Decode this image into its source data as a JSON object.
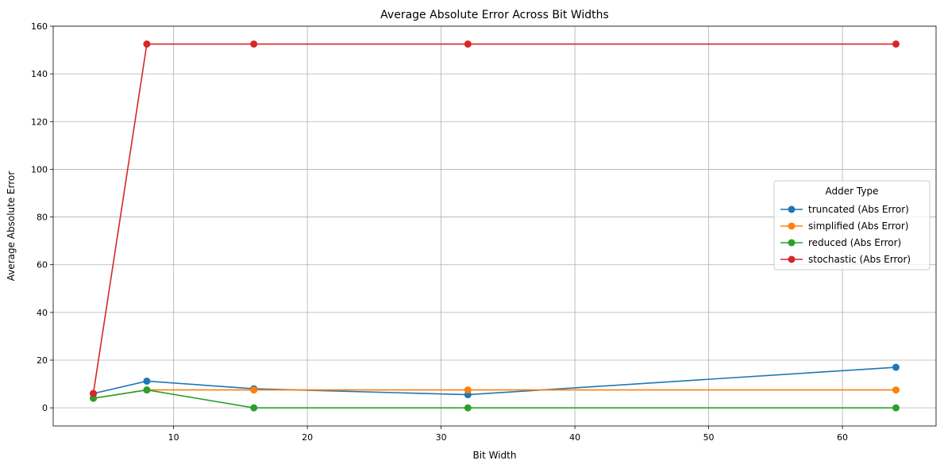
{
  "chart_data": {
    "type": "line",
    "title": "Average Absolute Error Across Bit Widths",
    "xlabel": "Bit Width",
    "ylabel": "Average Absolute Error",
    "x": [
      4,
      8,
      16,
      32,
      64
    ],
    "xlim": [
      1,
      67
    ],
    "ylim": [
      -7.6,
      160
    ],
    "xticks": [
      10,
      20,
      30,
      40,
      50,
      60
    ],
    "yticks": [
      0,
      20,
      40,
      60,
      80,
      100,
      120,
      140,
      160
    ],
    "grid": true,
    "legend": {
      "title": "Adder Type",
      "placement": "center-right"
    },
    "series": [
      {
        "name": "truncated (Abs Error)",
        "color": "#1f77b4",
        "values": [
          6.0,
          11.2,
          8.0,
          5.5,
          17.0
        ]
      },
      {
        "name": "simplified (Abs Error)",
        "color": "#ff7f0e",
        "values": [
          4.0,
          7.5,
          7.5,
          7.5,
          7.5
        ]
      },
      {
        "name": "reduced (Abs Error)",
        "color": "#2ca02c",
        "values": [
          4.0,
          7.5,
          0.0,
          0.0,
          0.0
        ]
      },
      {
        "name": "stochastic (Abs Error)",
        "color": "#d62728",
        "values": [
          6.0,
          152.5,
          152.5,
          152.5,
          152.5
        ]
      }
    ]
  }
}
